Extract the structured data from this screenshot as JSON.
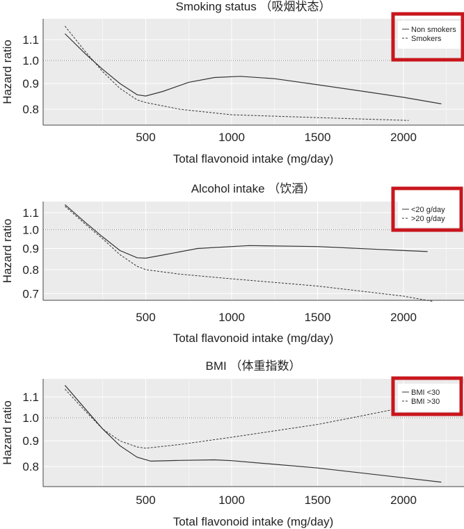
{
  "chart_data": [
    {
      "type": "line",
      "title": "Smoking status （吸烟状态）",
      "xlabel": "Total flavonoid intake (mg/day)",
      "ylabel": "Hazard ratio",
      "xticks": [
        500,
        1000,
        1500,
        2000
      ],
      "yticks": [
        0.8,
        0.9,
        1.0,
        1.1
      ],
      "xlim": [
        -97,
        2352
      ],
      "ylim": [
        0.744,
        1.21
      ],
      "yscale": "log",
      "reference_line": 1.0,
      "grid": true,
      "legend": "top-right",
      "series": [
        {
          "name": "Non smokers",
          "style": "solid",
          "points": [
            [
              30,
              1.13
            ],
            [
              150,
              1.03
            ],
            [
              250,
              0.96
            ],
            [
              350,
              0.9
            ],
            [
              450,
              0.855
            ],
            [
              500,
              0.85
            ],
            [
              600,
              0.868
            ],
            [
              750,
              0.905
            ],
            [
              900,
              0.925
            ],
            [
              1050,
              0.93
            ],
            [
              1250,
              0.92
            ],
            [
              1500,
              0.895
            ],
            [
              1800,
              0.865
            ],
            [
              2000,
              0.845
            ],
            [
              2220,
              0.82
            ]
          ]
        },
        {
          "name": "Smokers",
          "style": "dashed",
          "points": [
            [
              30,
              1.17
            ],
            [
              150,
              1.04
            ],
            [
              250,
              0.95
            ],
            [
              350,
              0.88
            ],
            [
              450,
              0.835
            ],
            [
              500,
              0.825
            ],
            [
              700,
              0.8
            ],
            [
              1000,
              0.78
            ],
            [
              1500,
              0.77
            ],
            [
              2030,
              0.76
            ]
          ]
        }
      ]
    },
    {
      "type": "line",
      "title": "Alcohol intake （饮酒）",
      "xlabel": "Total flavonoid intake (mg/day)",
      "ylabel": "Hazard ratio",
      "xticks": [
        500,
        1000,
        1500,
        2000
      ],
      "yticks": [
        0.7,
        0.8,
        0.9,
        1.0,
        1.1
      ],
      "xlim": [
        -97,
        2352
      ],
      "ylim": [
        0.674,
        1.17
      ],
      "yscale": "log",
      "reference_line": 1.0,
      "grid": true,
      "legend": "top-right",
      "series": [
        {
          "name": "<20 g/day",
          "style": "solid",
          "points": [
            [
              30,
              1.15
            ],
            [
              150,
              1.04
            ],
            [
              250,
              0.96
            ],
            [
              350,
              0.89
            ],
            [
              450,
              0.855
            ],
            [
              500,
              0.853
            ],
            [
              600,
              0.868
            ],
            [
              800,
              0.9
            ],
            [
              1100,
              0.915
            ],
            [
              1500,
              0.91
            ],
            [
              2000,
              0.89
            ],
            [
              2140,
              0.885
            ]
          ]
        },
        {
          "name": ">20 g/day",
          "style": "dashed",
          "points": [
            [
              30,
              1.14
            ],
            [
              150,
              1.03
            ],
            [
              250,
              0.95
            ],
            [
              350,
              0.87
            ],
            [
              450,
              0.815
            ],
            [
              500,
              0.8
            ],
            [
              700,
              0.78
            ],
            [
              1000,
              0.76
            ],
            [
              1500,
              0.73
            ],
            [
              2000,
              0.69
            ],
            [
              2170,
              0.67
            ]
          ]
        }
      ]
    },
    {
      "type": "line",
      "title": "BMI （体重指数）",
      "xlabel": "Total flavonoid intake (mg/day)",
      "ylabel": "Hazard ratio",
      "xticks": [
        500,
        1000,
        1500,
        2000
      ],
      "yticks": [
        0.8,
        0.9,
        1.0,
        1.1
      ],
      "xlim": [
        -97,
        2352
      ],
      "ylim": [
        0.73,
        1.195
      ],
      "yscale": "log",
      "reference_line": 1.0,
      "grid": true,
      "legend": "top-right",
      "series": [
        {
          "name": "BMI <30",
          "style": "solid",
          "points": [
            [
              30,
              1.16
            ],
            [
              150,
              1.04
            ],
            [
              250,
              0.95
            ],
            [
              350,
              0.88
            ],
            [
              450,
              0.835
            ],
            [
              530,
              0.82
            ],
            [
              700,
              0.823
            ],
            [
              900,
              0.825
            ],
            [
              1000,
              0.822
            ],
            [
              1500,
              0.795
            ],
            [
              2000,
              0.76
            ],
            [
              2220,
              0.745
            ]
          ]
        },
        {
          "name": "BMI >30",
          "style": "dashed",
          "points": [
            [
              30,
              1.14
            ],
            [
              150,
              1.03
            ],
            [
              250,
              0.95
            ],
            [
              350,
              0.9
            ],
            [
              450,
              0.875
            ],
            [
              500,
              0.87
            ],
            [
              700,
              0.885
            ],
            [
              1000,
              0.915
            ],
            [
              1500,
              0.97
            ],
            [
              1700,
              1.0
            ],
            [
              1950,
              1.04
            ]
          ]
        }
      ]
    }
  ],
  "colors": {
    "panel_bg": "#ebebeb",
    "grid": "#ffffff",
    "line": "#333333",
    "highlight_box": "#c8161d"
  }
}
